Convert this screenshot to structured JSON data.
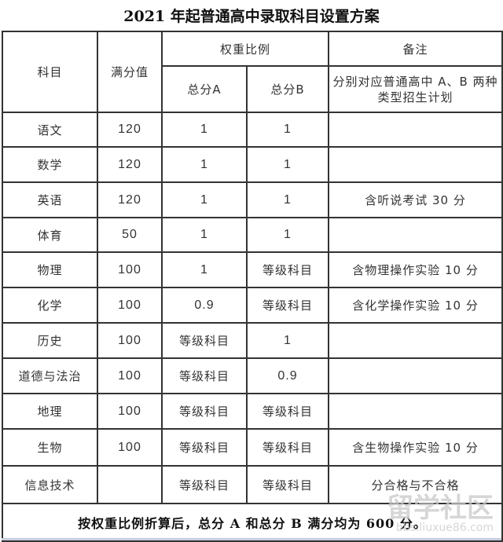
{
  "title": "2021 年起普通高中录取科目设置方案",
  "headers": {
    "subject": "科目",
    "full_score": "满分值",
    "weight": "权重比例",
    "total_a": "总分A",
    "total_b": "总分B",
    "note": "备注",
    "note_sub": "分别对应普通高中 A、B 两种类型招生计划"
  },
  "rows": [
    {
      "subject": "语文",
      "full": "120",
      "a": "1",
      "b": "1",
      "note": ""
    },
    {
      "subject": "数学",
      "full": "120",
      "a": "1",
      "b": "1",
      "note": ""
    },
    {
      "subject": "英语",
      "full": "120",
      "a": "1",
      "b": "1",
      "note": "含听说考试 30 分"
    },
    {
      "subject": "体育",
      "full": "50",
      "a": "1",
      "b": "1",
      "note": ""
    },
    {
      "subject": "物理",
      "full": "100",
      "a": "1",
      "b": "等级科目",
      "note": "含物理操作实验 10 分"
    },
    {
      "subject": "化学",
      "full": "100",
      "a": "0.9",
      "b": "等级科目",
      "note": "含化学操作实验 10 分"
    },
    {
      "subject": "历史",
      "full": "100",
      "a": "等级科目",
      "b": "1",
      "note": ""
    },
    {
      "subject": "道德与法治",
      "full": "100",
      "a": "等级科目",
      "b": "0.9",
      "note": ""
    },
    {
      "subject": "地理",
      "full": "100",
      "a": "等级科目",
      "b": "等级科目",
      "note": ""
    },
    {
      "subject": "生物",
      "full": "100",
      "a": "等级科目",
      "b": "等级科目",
      "note": "含生物操作实验 10 分"
    },
    {
      "subject": "信息技术",
      "full": "",
      "a": "等级科目",
      "b": "等级科目",
      "note": "分合格与不合格"
    }
  ],
  "footer": "按权重比例折算后，总分 A 和总分 B 满分均为 600 分。",
  "watermark": {
    "text": "留学社区",
    "url": "bbs.liuxue86.com"
  }
}
